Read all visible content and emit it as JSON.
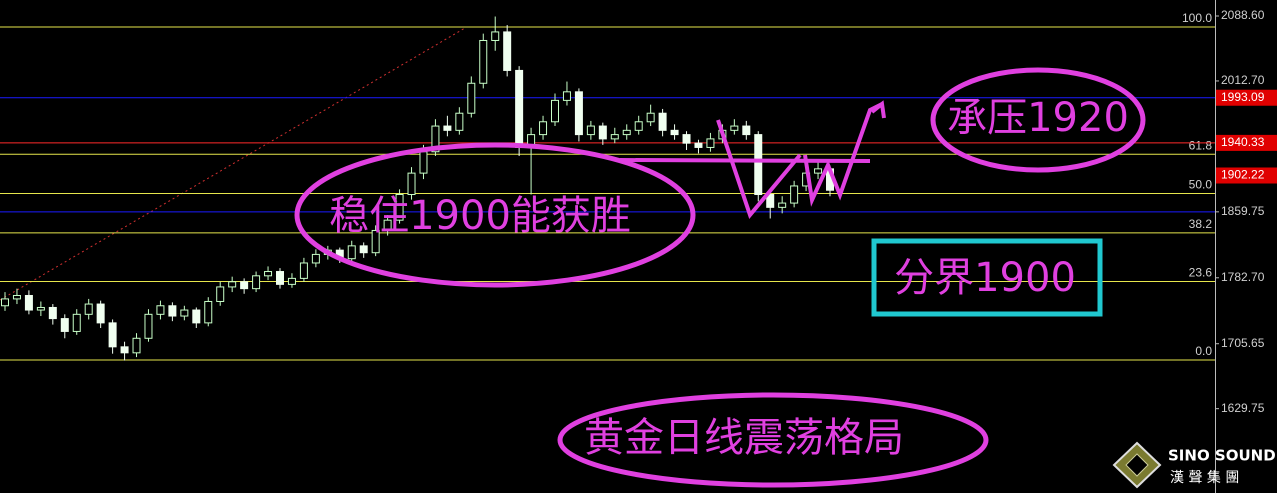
{
  "chart_data": {
    "type": "candlestick",
    "ylim": [
      1531.2,
      2107.3
    ],
    "yticks": [
      {
        "value": 2088.6,
        "label": "2088.60"
      },
      {
        "value": 2012.7,
        "label": "2012.70"
      },
      1859.75,
      {
        "value": 1782.7,
        "label": "1782.70"
      },
      1705.65,
      1629.75
    ],
    "fib_levels": [
      {
        "value": 2075.7,
        "label": "100.0"
      },
      {
        "value": 1927.1,
        "label": "61.8"
      },
      {
        "value": 1881.2,
        "label": "50.0"
      },
      {
        "value": 1835.2,
        "label": "38.2"
      },
      {
        "value": 1778.4,
        "label": "23.6"
      },
      {
        "value": 1686.6,
        "label": "0.0"
      }
    ],
    "fib_color": "#e6e64c",
    "lines": [
      {
        "value": 1993.09,
        "color": "#1a1aff"
      },
      {
        "value": 1940.33,
        "color": "#ff2a2a"
      },
      {
        "value": 1859.75,
        "color": "#1a1aff"
      }
    ],
    "price_labels": [
      1993.09,
      1940.33,
      1902.22
    ],
    "price_label_color": "#e00000",
    "up_color": "#c8ffc8",
    "down_color": "#f0fff0",
    "candles": [
      [
        1750,
        1766,
        1744,
        1758
      ],
      [
        1758,
        1770,
        1752,
        1762
      ],
      [
        1762,
        1768,
        1740,
        1745
      ],
      [
        1745,
        1755,
        1738,
        1748
      ],
      [
        1748,
        1752,
        1728,
        1735
      ],
      [
        1735,
        1740,
        1712,
        1720
      ],
      [
        1720,
        1746,
        1716,
        1740
      ],
      [
        1740,
        1758,
        1734,
        1752
      ],
      [
        1752,
        1756,
        1724,
        1730
      ],
      [
        1730,
        1734,
        1694,
        1702
      ],
      [
        1702,
        1708,
        1686,
        1695
      ],
      [
        1695,
        1718,
        1690,
        1712
      ],
      [
        1712,
        1746,
        1708,
        1740
      ],
      [
        1740,
        1756,
        1734,
        1750
      ],
      [
        1750,
        1754,
        1732,
        1738
      ],
      [
        1738,
        1750,
        1733,
        1745
      ],
      [
        1745,
        1748,
        1724,
        1730
      ],
      [
        1730,
        1760,
        1726,
        1755
      ],
      [
        1755,
        1778,
        1750,
        1772
      ],
      [
        1772,
        1784,
        1766,
        1778
      ],
      [
        1778,
        1782,
        1764,
        1770
      ],
      [
        1770,
        1790,
        1766,
        1785
      ],
      [
        1785,
        1796,
        1780,
        1790
      ],
      [
        1790,
        1794,
        1770,
        1775
      ],
      [
        1775,
        1788,
        1771,
        1782
      ],
      [
        1782,
        1806,
        1778,
        1800
      ],
      [
        1800,
        1816,
        1795,
        1810
      ],
      [
        1810,
        1820,
        1804,
        1815
      ],
      [
        1815,
        1818,
        1800,
        1805
      ],
      [
        1805,
        1826,
        1800,
        1820
      ],
      [
        1820,
        1824,
        1806,
        1812
      ],
      [
        1812,
        1844,
        1808,
        1838
      ],
      [
        1838,
        1856,
        1832,
        1850
      ],
      [
        1850,
        1886,
        1846,
        1880
      ],
      [
        1880,
        1912,
        1874,
        1905
      ],
      [
        1905,
        1938,
        1898,
        1930
      ],
      [
        1930,
        1968,
        1925,
        1960
      ],
      [
        1960,
        1972,
        1948,
        1955
      ],
      [
        1955,
        1982,
        1950,
        1975
      ],
      [
        1975,
        2018,
        1970,
        2010
      ],
      [
        2010,
        2068,
        2004,
        2060
      ],
      [
        2060,
        2088,
        2048,
        2070
      ],
      [
        2070,
        2078,
        2018,
        2025
      ],
      [
        2025,
        2030,
        1925,
        1935
      ],
      [
        1935,
        1958,
        1880,
        1950
      ],
      [
        1950,
        1972,
        1944,
        1965
      ],
      [
        1965,
        1998,
        1960,
        1990
      ],
      [
        1990,
        2012,
        1984,
        2000
      ],
      [
        2000,
        2004,
        1942,
        1950
      ],
      [
        1950,
        1966,
        1944,
        1960
      ],
      [
        1960,
        1964,
        1938,
        1945
      ],
      [
        1945,
        1958,
        1940,
        1950
      ],
      [
        1950,
        1962,
        1944,
        1955
      ],
      [
        1955,
        1972,
        1950,
        1965
      ],
      [
        1965,
        1985,
        1960,
        1975
      ],
      [
        1975,
        1980,
        1948,
        1955
      ],
      [
        1955,
        1962,
        1944,
        1950
      ],
      [
        1950,
        1954,
        1932,
        1940
      ],
      [
        1940,
        1944,
        1928,
        1935
      ],
      [
        1935,
        1952,
        1930,
        1945
      ],
      [
        1945,
        1962,
        1940,
        1955
      ],
      [
        1955,
        1968,
        1950,
        1960
      ],
      [
        1960,
        1966,
        1944,
        1950
      ],
      [
        1950,
        1954,
        1872,
        1880
      ],
      [
        1880,
        1886,
        1852,
        1865
      ],
      [
        1865,
        1878,
        1858,
        1870
      ],
      [
        1870,
        1896,
        1865,
        1890
      ],
      [
        1890,
        1912,
        1884,
        1905
      ],
      [
        1905,
        1918,
        1898,
        1910
      ],
      [
        1910,
        1914,
        1878,
        1885
      ]
    ],
    "annotations": [
      "稳住1900能获胜",
      "承压1920",
      "分界1900",
      "黄金日线震荡格局"
    ],
    "logo": {
      "name": "SINO SOUND",
      "subtitle": "漢 聲 集 團"
    }
  }
}
